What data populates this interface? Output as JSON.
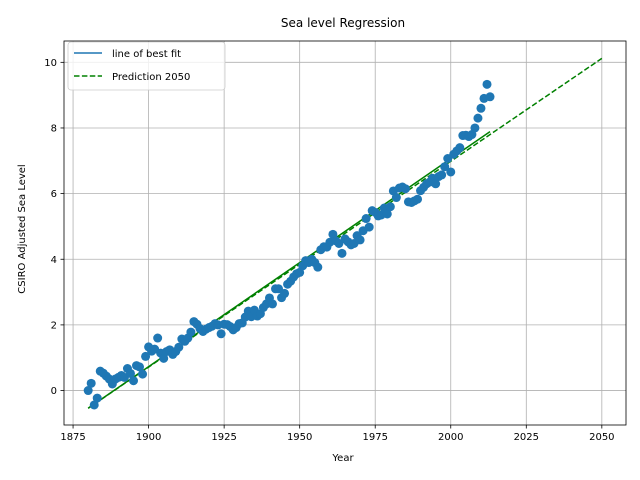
{
  "chart_data": {
    "type": "scatter",
    "title": "Sea level Regression",
    "xlabel": "Year",
    "ylabel": "CSIRO Adjusted Sea Level",
    "xlim": [
      1872,
      2058
    ],
    "ylim": [
      -1.05,
      10.65
    ],
    "xticks": [
      1875,
      1900,
      1925,
      1950,
      1975,
      2000,
      2025,
      2050
    ],
    "yticks": [
      0,
      2,
      4,
      6,
      8,
      10
    ],
    "grid": true,
    "legend_position": "top-left",
    "colors": {
      "scatter": "#1f77b4",
      "fit_line": "#1f77b4",
      "prediction_line": "#008000"
    },
    "legend": [
      {
        "label": "line of best fit",
        "style": "solid",
        "color": "#1f77b4"
      },
      {
        "label": "Prediction 2050",
        "style": "dashed",
        "color": "#008000"
      }
    ],
    "scatter": {
      "x": [
        1880,
        1881,
        1882,
        1883,
        1884,
        1885,
        1886,
        1887,
        1888,
        1889,
        1890,
        1891,
        1892,
        1893,
        1894,
        1895,
        1896,
        1897,
        1898,
        1899,
        1900,
        1901,
        1902,
        1903,
        1904,
        1905,
        1906,
        1907,
        1908,
        1909,
        1910,
        1911,
        1912,
        1913,
        1914,
        1915,
        1916,
        1917,
        1918,
        1919,
        1920,
        1921,
        1922,
        1923,
        1924,
        1925,
        1926,
        1927,
        1928,
        1929,
        1930,
        1931,
        1932,
        1933,
        1934,
        1935,
        1936,
        1937,
        1938,
        1939,
        1940,
        1941,
        1942,
        1943,
        1944,
        1945,
        1946,
        1947,
        1948,
        1949,
        1950,
        1951,
        1952,
        1953,
        1954,
        1955,
        1956,
        1957,
        1958,
        1959,
        1960,
        1961,
        1962,
        1963,
        1964,
        1965,
        1966,
        1967,
        1968,
        1969,
        1970,
        1971,
        1972,
        1973,
        1974,
        1975,
        1976,
        1977,
        1978,
        1979,
        1980,
        1981,
        1982,
        1983,
        1984,
        1985,
        1986,
        1987,
        1988,
        1989,
        1990,
        1991,
        1992,
        1993,
        1994,
        1995,
        1996,
        1997,
        1998,
        1999,
        2000,
        2001,
        2002,
        2003,
        2004,
        2005,
        2006,
        2007,
        2008,
        2009,
        2010,
        2011,
        2012,
        2013
      ],
      "y": [
        0.0,
        0.22,
        -0.44,
        -0.23,
        0.59,
        0.53,
        0.44,
        0.35,
        0.2,
        0.35,
        0.4,
        0.46,
        0.4,
        0.67,
        0.52,
        0.3,
        0.76,
        0.72,
        0.5,
        1.04,
        1.33,
        1.2,
        1.26,
        1.6,
        1.14,
        0.98,
        1.19,
        1.24,
        1.1,
        1.19,
        1.32,
        1.57,
        1.5,
        1.6,
        1.78,
        2.1,
        2.02,
        1.89,
        1.8,
        1.87,
        1.92,
        1.96,
        2.04,
        2.0,
        1.73,
        2.02,
        2.01,
        1.95,
        1.85,
        1.92,
        2.04,
        2.06,
        2.24,
        2.42,
        2.25,
        2.45,
        2.27,
        2.34,
        2.53,
        2.64,
        2.82,
        2.64,
        3.1,
        3.1,
        2.83,
        2.96,
        3.24,
        3.33,
        3.46,
        3.56,
        3.6,
        3.8,
        3.96,
        3.9,
        4.0,
        3.9,
        3.76,
        4.29,
        4.38,
        4.37,
        4.52,
        4.76,
        4.56,
        4.48,
        4.18,
        4.62,
        4.53,
        4.44,
        4.48,
        4.72,
        4.59,
        4.87,
        5.24,
        4.98,
        5.48,
        5.43,
        5.32,
        5.35,
        5.56,
        5.38,
        5.6,
        6.08,
        5.88,
        6.17,
        6.2,
        6.15,
        5.75,
        5.73,
        5.78,
        5.83,
        6.09,
        6.19,
        6.3,
        6.35,
        6.47,
        6.3,
        6.52,
        6.57,
        6.82,
        7.07,
        6.66,
        7.2,
        7.3,
        7.4,
        7.77,
        7.78,
        7.74,
        7.8,
        8.0,
        8.3,
        8.6,
        8.9,
        9.33,
        8.95
      ]
    },
    "series": [
      {
        "x": [
          1880,
          2013
        ],
        "y": [
          -0.54,
          7.89
        ]
      },
      {
        "x": [
          1880,
          2050
        ],
        "y": [
          -0.54,
          10.12
        ]
      }
    ]
  }
}
